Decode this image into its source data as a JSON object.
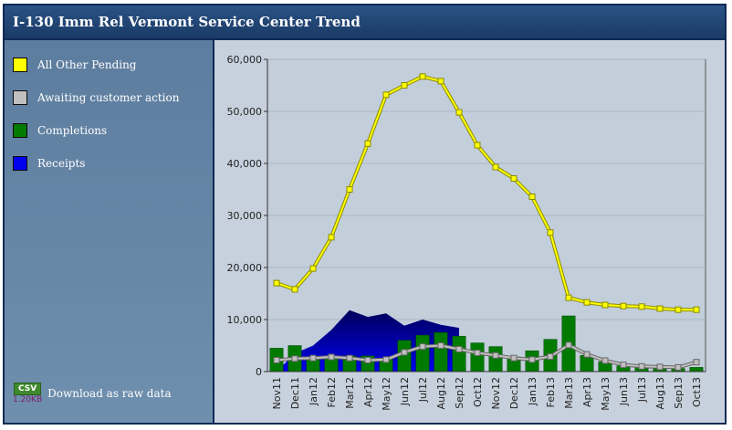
{
  "header": {
    "title": "I-130 Imm Rel Vermont Service Center Trend"
  },
  "legend": [
    {
      "label": "All Other Pending",
      "color": "#ffff00"
    },
    {
      "label": "Awaiting customer action",
      "color": "#c0c0c0"
    },
    {
      "label": "Completions",
      "color": "#007a00"
    },
    {
      "label": "Receipts",
      "color": "#0000ee"
    }
  ],
  "download": {
    "badge": "CSV",
    "size": "1.20KB",
    "label": "Download as raw data"
  },
  "chart_data": {
    "type": "line",
    "categories": [
      "Nov11",
      "Dec11",
      "Jan12",
      "Feb12",
      "Mar12",
      "Apr12",
      "May12",
      "Jun12",
      "Jul12",
      "Aug12",
      "Sep12",
      "Oct12",
      "Nov12",
      "Dec12",
      "Jan13",
      "Feb13",
      "Mar13",
      "Apr13",
      "May13",
      "Jun13",
      "Jul13",
      "Aug13",
      "Sep13",
      "Oct13"
    ],
    "ylim": [
      0,
      60000
    ],
    "yticks": [
      0,
      10000,
      20000,
      30000,
      40000,
      50000,
      60000
    ],
    "ytick_labels": [
      "0",
      "10,000",
      "20,000",
      "30,000",
      "40,000",
      "50,000",
      "60,000"
    ],
    "grid": true,
    "series": [
      {
        "name": "All Other Pending",
        "kind": "line",
        "color": "#ffff00",
        "values": [
          17000,
          15800,
          19800,
          25800,
          35000,
          43800,
          53200,
          55000,
          56700,
          55800,
          49800,
          43500,
          39300,
          37100,
          33600,
          26700,
          14200,
          13300,
          12800,
          12600,
          12500,
          12100,
          11900,
          11900
        ]
      },
      {
        "name": "Awaiting customer action",
        "kind": "line",
        "color": "#c0c0c0",
        "values": [
          2200,
          2500,
          2600,
          2800,
          2600,
          2200,
          2300,
          3700,
          4800,
          5000,
          4300,
          3600,
          3100,
          2600,
          2300,
          2900,
          5100,
          3300,
          2100,
          1300,
          1000,
          900,
          800,
          1800
        ]
      },
      {
        "name": "Completions",
        "kind": "bar",
        "color": "#007a00",
        "values": [
          4500,
          5000,
          2800,
          3000,
          3000,
          3000,
          2500,
          6000,
          7000,
          7500,
          6800,
          5500,
          4800,
          2800,
          4000,
          6200,
          10700,
          3100,
          1900,
          1100,
          900,
          800,
          600,
          800
        ]
      },
      {
        "name": "Receipts",
        "kind": "area",
        "color": "#0000ee",
        "values": [
          0,
          3500,
          5000,
          8000,
          11800,
          10500,
          11200,
          8800,
          10000,
          9000,
          8400,
          null,
          null,
          null,
          null,
          null,
          null,
          null,
          null,
          null,
          null,
          null,
          null,
          null
        ]
      }
    ]
  }
}
